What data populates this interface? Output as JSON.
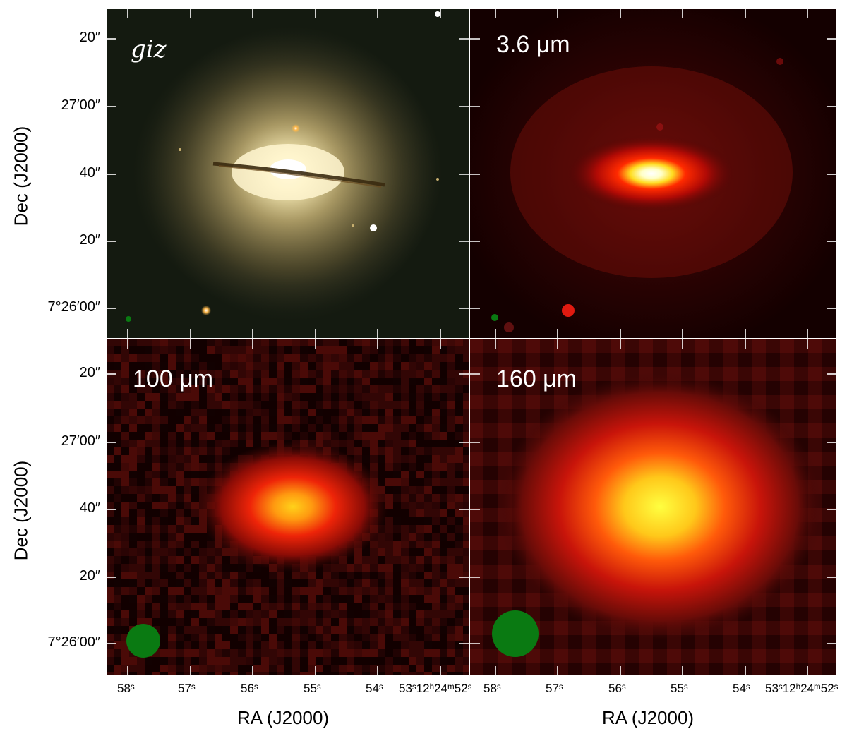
{
  "panels": [
    {
      "id": "giz",
      "label": "giz"
    },
    {
      "id": "ir36",
      "label": "3.6 μm"
    },
    {
      "id": "ir100",
      "label": "100 μm"
    },
    {
      "id": "ir160",
      "label": "160 μm"
    }
  ],
  "axes": {
    "y_title": "Dec (J2000)",
    "x_title": "RA (J2000)",
    "y_ticks": [
      "20″",
      "27′00″",
      "40″",
      "20″",
      "7°26′00″"
    ],
    "x_ticks": [
      "58ˢ",
      "57ˢ",
      "56ˢ",
      "55ˢ",
      "54ˢ",
      "53ˢ12ʰ24ᵐ52ˢ"
    ]
  },
  "colors": {
    "beam": "#0a7a12",
    "tick": "#ffffff"
  },
  "icons": [
    "beam-circle"
  ]
}
